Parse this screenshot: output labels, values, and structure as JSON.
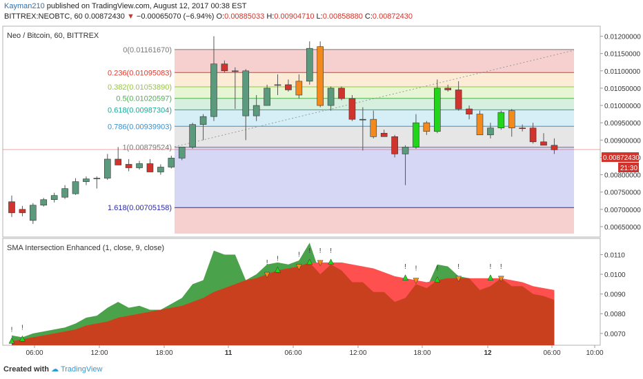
{
  "header": {
    "author": "Kayman210",
    "published_text": "published on TradingView.com, August 12, 2017 00:38 EST",
    "symbol_line": "BITTREX:NEOBTC, 60",
    "last": "0.00872430",
    "arrow": "▼",
    "change": "−0.00065070 (−6.94%)",
    "o_label": "O:",
    "o_val": "0.00885033",
    "h_label": "H:",
    "h_val": "0.00904710",
    "l_label": "L:",
    "l_val": "0.00858880",
    "c_label": "C:",
    "c_val": "0.00872430"
  },
  "footer": {
    "created_with": "Created with",
    "brand": "TradingView"
  },
  "colors": {
    "up": "#5c9a7e",
    "down": "#d0342c",
    "orange": "#f28a1e",
    "green_bright": "#22d41a",
    "sma_fast": "#4aa24a",
    "sma_slow": "#ff5050",
    "overlap": "#c8401e",
    "price_line": "#d94a4a"
  },
  "chart_data": [
    {
      "type": "candlestick",
      "title": "Neo / Bitcoin, 60, BITTREX",
      "y_axis_ticks": [
        "0.01200000",
        "0.01150000",
        "0.01100000",
        "0.01050000",
        "0.01000000",
        "0.00950000",
        "0.00900000",
        "0.00850000",
        "0.00800000",
        "0.00750000",
        "0.00700000",
        "0.00650000"
      ],
      "ylim": [
        0.0062,
        0.01225
      ],
      "current_price_label": "0.00872430",
      "current_price": 0.0087243,
      "time_label": "21:30",
      "x_ticks": [
        "06:00",
        "12:00",
        "18:00",
        "11",
        "06:00",
        "12:00",
        "18:00",
        "12",
        "06:00",
        "10:00"
      ],
      "fib_levels": [
        {
          "ratio": "0",
          "value": "0.01161670",
          "price": 0.0116167,
          "color": "#777777",
          "fill": "#f6cfcf"
        },
        {
          "ratio": "0.236",
          "value": "0.01095083",
          "price": 0.01095083,
          "color": "#e0382c",
          "fill": "#fcecd6"
        },
        {
          "ratio": "0.382",
          "value": "0.01053890",
          "price": 0.0105389,
          "color": "#93c63b",
          "fill": "#e6f5d4"
        },
        {
          "ratio": "0.5",
          "value": "0.01020597",
          "price": 0.01020597,
          "color": "#4caf50",
          "fill": "#d6efdf"
        },
        {
          "ratio": "0.618",
          "value": "0.00987304",
          "price": 0.00987304,
          "color": "#16a89a",
          "fill": "#d6eef5"
        },
        {
          "ratio": "0.786",
          "value": "0.00939903",
          "price": 0.00939903,
          "color": "#3a8fc9",
          "fill": "#e6e6e6"
        },
        {
          "ratio": "1",
          "value": "0.00879524",
          "price": 0.00879524,
          "color": "#777777",
          "fill": "#d6d6f5"
        },
        {
          "ratio": "1.618",
          "value": "0.00705158",
          "price": 0.00705158,
          "color": "#2a2aa8",
          "fill": "#f6cfcf"
        }
      ],
      "fib_bottom": 0.0063,
      "candles": [
        {
          "o": 0.00722,
          "h": 0.0074,
          "l": 0.00678,
          "c": 0.0069,
          "k": "d"
        },
        {
          "o": 0.0069,
          "h": 0.0071,
          "l": 0.0068,
          "c": 0.007,
          "k": "d"
        },
        {
          "o": 0.00668,
          "h": 0.00718,
          "l": 0.00658,
          "c": 0.00712,
          "k": "u"
        },
        {
          "o": 0.00712,
          "h": 0.00733,
          "l": 0.00708,
          "c": 0.00728,
          "k": "u"
        },
        {
          "o": 0.00728,
          "h": 0.00748,
          "l": 0.0072,
          "c": 0.0074,
          "k": "u"
        },
        {
          "o": 0.00735,
          "h": 0.0077,
          "l": 0.0073,
          "c": 0.0076,
          "k": "u"
        },
        {
          "o": 0.00745,
          "h": 0.0079,
          "l": 0.00742,
          "c": 0.0078,
          "k": "u"
        },
        {
          "o": 0.0078,
          "h": 0.00795,
          "l": 0.0077,
          "c": 0.00788,
          "k": "u"
        },
        {
          "o": 0.00788,
          "h": 0.00795,
          "l": 0.0076,
          "c": 0.0079,
          "k": "u"
        },
        {
          "o": 0.0079,
          "h": 0.0086,
          "l": 0.00785,
          "c": 0.00845,
          "k": "u"
        },
        {
          "o": 0.00845,
          "h": 0.0088,
          "l": 0.0083,
          "c": 0.00828,
          "k": "d"
        },
        {
          "o": 0.0083,
          "h": 0.00845,
          "l": 0.0081,
          "c": 0.0082,
          "k": "d"
        },
        {
          "o": 0.0082,
          "h": 0.0084,
          "l": 0.00815,
          "c": 0.00832,
          "k": "u"
        },
        {
          "o": 0.00832,
          "h": 0.00845,
          "l": 0.00808,
          "c": 0.00808,
          "k": "d"
        },
        {
          "o": 0.00808,
          "h": 0.0083,
          "l": 0.008,
          "c": 0.00822,
          "k": "u"
        },
        {
          "o": 0.00822,
          "h": 0.00855,
          "l": 0.00818,
          "c": 0.00848,
          "k": "u"
        },
        {
          "o": 0.00848,
          "h": 0.00875,
          "l": 0.00842,
          "c": 0.0088,
          "k": "u"
        },
        {
          "o": 0.0088,
          "h": 0.0095,
          "l": 0.00875,
          "c": 0.00945,
          "k": "u"
        },
        {
          "o": 0.00945,
          "h": 0.00975,
          "l": 0.009,
          "c": 0.00968,
          "k": "u"
        },
        {
          "o": 0.00968,
          "h": 0.012,
          "l": 0.00955,
          "c": 0.0112,
          "k": "u"
        },
        {
          "o": 0.0112,
          "h": 0.0113,
          "l": 0.01095,
          "c": 0.011,
          "k": "d"
        },
        {
          "o": 0.011,
          "h": 0.0111,
          "l": 0.0099,
          "c": 0.011,
          "k": "d"
        },
        {
          "o": 0.011,
          "h": 0.01105,
          "l": 0.009,
          "c": 0.0097,
          "k": "u"
        },
        {
          "o": 0.0097,
          "h": 0.0103,
          "l": 0.00955,
          "c": 0.01,
          "k": "u"
        },
        {
          "o": 0.01,
          "h": 0.0106,
          "l": 0.01,
          "c": 0.0105,
          "k": "u"
        },
        {
          "o": 0.0106,
          "h": 0.0109,
          "l": 0.0103,
          "c": 0.0106,
          "k": "u"
        },
        {
          "o": 0.0106,
          "h": 0.01075,
          "l": 0.0104,
          "c": 0.01045,
          "k": "d"
        },
        {
          "o": 0.0103,
          "h": 0.0109,
          "l": 0.0102,
          "c": 0.0107,
          "k": "o"
        },
        {
          "o": 0.0107,
          "h": 0.01185,
          "l": 0.0106,
          "c": 0.01165,
          "k": "u"
        },
        {
          "o": 0.0117,
          "h": 0.01185,
          "l": 0.00995,
          "c": 0.01,
          "k": "o"
        },
        {
          "o": 0.0105,
          "h": 0.01055,
          "l": 0.00985,
          "c": 0.01,
          "k": "u"
        },
        {
          "o": 0.0105,
          "h": 0.01055,
          "l": 0.01015,
          "c": 0.0102,
          "k": "d"
        },
        {
          "o": 0.0102,
          "h": 0.0103,
          "l": 0.00955,
          "c": 0.0096,
          "k": "d"
        },
        {
          "o": 0.0096,
          "h": 0.00995,
          "l": 0.0087,
          "c": 0.0096,
          "k": "d"
        },
        {
          "o": 0.0096,
          "h": 0.00985,
          "l": 0.00905,
          "c": 0.0091,
          "k": "o"
        },
        {
          "o": 0.0092,
          "h": 0.0093,
          "l": 0.0091,
          "c": 0.0091,
          "k": "d"
        },
        {
          "o": 0.0091,
          "h": 0.00915,
          "l": 0.0085,
          "c": 0.0086,
          "k": "d"
        },
        {
          "o": 0.0086,
          "h": 0.00885,
          "l": 0.0077,
          "c": 0.0088,
          "k": "u"
        },
        {
          "o": 0.0088,
          "h": 0.00975,
          "l": 0.00875,
          "c": 0.0095,
          "k": "g"
        },
        {
          "o": 0.0095,
          "h": 0.00955,
          "l": 0.00915,
          "c": 0.00925,
          "k": "o"
        },
        {
          "o": 0.00925,
          "h": 0.01075,
          "l": 0.0092,
          "c": 0.0105,
          "k": "g"
        },
        {
          "o": 0.0105,
          "h": 0.0106,
          "l": 0.0104,
          "c": 0.01045,
          "k": "d"
        },
        {
          "o": 0.01045,
          "h": 0.0107,
          "l": 0.00985,
          "c": 0.0099,
          "k": "d"
        },
        {
          "o": 0.0099,
          "h": 0.01,
          "l": 0.0096,
          "c": 0.00975,
          "k": "d"
        },
        {
          "o": 0.00975,
          "h": 0.00985,
          "l": 0.00915,
          "c": 0.00915,
          "k": "o"
        },
        {
          "o": 0.00915,
          "h": 0.0095,
          "l": 0.00905,
          "c": 0.00935,
          "k": "u"
        },
        {
          "o": 0.00935,
          "h": 0.00985,
          "l": 0.0093,
          "c": 0.0098,
          "k": "g"
        },
        {
          "o": 0.00985,
          "h": 0.0099,
          "l": 0.0091,
          "c": 0.00935,
          "k": "o"
        },
        {
          "o": 0.00935,
          "h": 0.00945,
          "l": 0.00925,
          "c": 0.00935,
          "k": "d"
        },
        {
          "o": 0.00935,
          "h": 0.0095,
          "l": 0.0089,
          "c": 0.00895,
          "k": "d"
        },
        {
          "o": 0.00895,
          "h": 0.0092,
          "l": 0.00885,
          "c": 0.00885,
          "k": "d"
        },
        {
          "o": 0.00885,
          "h": 0.00905,
          "l": 0.0086,
          "c": 0.00872,
          "k": "d"
        }
      ]
    },
    {
      "type": "area",
      "title": "SMA Intersection Enhanced (1, close, 9, close)",
      "y_axis_ticks": [
        "0.0110",
        "0.0100",
        "0.0090",
        "0.0080",
        "0.0070"
      ],
      "ylim": [
        0.0064,
        0.01175
      ],
      "series": [
        {
          "name": "SMA 1",
          "values": [
            0.0069,
            0.0068,
            0.007,
            0.0071,
            0.0072,
            0.0073,
            0.0075,
            0.0078,
            0.0079,
            0.0083,
            0.0086,
            0.0083,
            0.0084,
            0.0082,
            0.0082,
            0.0085,
            0.0088,
            0.0095,
            0.0097,
            0.0112,
            0.011,
            0.011,
            0.0097,
            0.01,
            0.0105,
            0.0106,
            0.0105,
            0.0107,
            0.0116,
            0.01,
            0.0105,
            0.0102,
            0.0096,
            0.0096,
            0.0091,
            0.0091,
            0.0086,
            0.0088,
            0.0095,
            0.0093,
            0.0105,
            0.0104,
            0.0099,
            0.0098,
            0.0092,
            0.0094,
            0.0098,
            0.0094,
            0.0094,
            0.009,
            0.0089,
            0.0087
          ]
        },
        {
          "name": "SMA 9",
          "values": [
            0.0066,
            0.0067,
            0.0068,
            0.0069,
            0.007,
            0.0071,
            0.0072,
            0.0074,
            0.0075,
            0.0076,
            0.0078,
            0.0079,
            0.008,
            0.0081,
            0.0082,
            0.0083,
            0.0084,
            0.0086,
            0.0088,
            0.0091,
            0.0093,
            0.0095,
            0.0097,
            0.0098,
            0.01,
            0.0102,
            0.0103,
            0.0104,
            0.0106,
            0.0106,
            0.0106,
            0.0106,
            0.0105,
            0.0104,
            0.0103,
            0.0101,
            0.0099,
            0.0098,
            0.0097,
            0.0096,
            0.0097,
            0.0098,
            0.0098,
            0.0098,
            0.0098,
            0.0098,
            0.0098,
            0.0097,
            0.0096,
            0.0094,
            0.0093,
            0.0092
          ]
        }
      ],
      "signals": [
        {
          "i": 0,
          "dir": "up"
        },
        {
          "i": 1,
          "dir": "up"
        },
        {
          "i": 24,
          "dir": "down"
        },
        {
          "i": 25,
          "dir": "up"
        },
        {
          "i": 27,
          "dir": "down"
        },
        {
          "i": 28,
          "dir": "up"
        },
        {
          "i": 29,
          "dir": "down"
        },
        {
          "i": 30,
          "dir": "up"
        },
        {
          "i": 37,
          "dir": "up"
        },
        {
          "i": 38,
          "dir": "down"
        },
        {
          "i": 40,
          "dir": "up"
        },
        {
          "i": 42,
          "dir": "down"
        },
        {
          "i": 45,
          "dir": "up"
        },
        {
          "i": 46,
          "dir": "down"
        }
      ],
      "signal_mark": "!"
    }
  ]
}
